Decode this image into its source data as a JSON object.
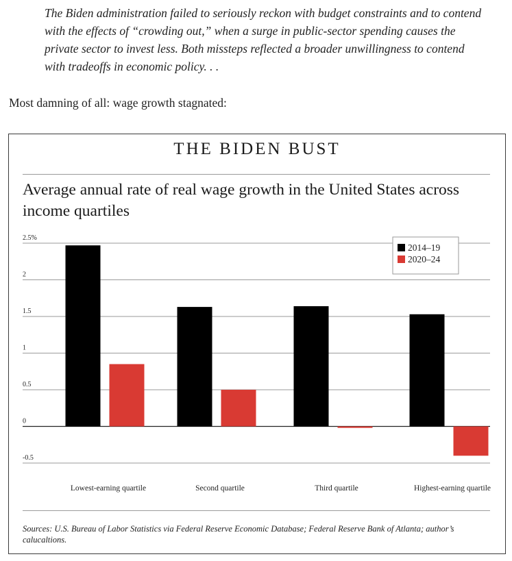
{
  "article": {
    "quote": "The Biden administration failed to seriously reckon with budget constraints and to contend with the effects of “crowding out,” when a surge in public-sector spending causes the private sector to invest less. Both missteps reflected a broader unwillingness to contend with tradeoffs in economic policy. . .",
    "lead": "Most damning of all: wage growth stagnated:"
  },
  "chart_data": {
    "type": "bar",
    "title": "THE BIDEN BUST",
    "subtitle": "Average annual rate of real wage growth in the United States across income quartiles",
    "categories": [
      "Lowest-earning quartile",
      "Second quartile",
      "Third quartile",
      "Highest-earning quartile"
    ],
    "series": [
      {
        "name": "2014–19",
        "color": "#000000",
        "values": [
          2.47,
          1.63,
          1.64,
          1.53
        ]
      },
      {
        "name": "2020–24",
        "color": "#d93a33",
        "values": [
          0.85,
          0.5,
          -0.02,
          -0.4
        ]
      }
    ],
    "yticks": [
      2.5,
      2,
      1.5,
      1,
      0.5,
      0,
      -0.5
    ],
    "ytick_labels": [
      "2.5%",
      "2",
      "1.5",
      "1",
      "0.5",
      "0",
      "-0.5"
    ],
    "ylim": [
      -0.5,
      2.5
    ],
    "grid": true,
    "legend_position": "top-right",
    "source": "Sources: U.S. Bureau of Labor Statistics via Federal Reserve Economic Database; Federal Reserve Bank of Atlanta; author’s calucaltions."
  }
}
